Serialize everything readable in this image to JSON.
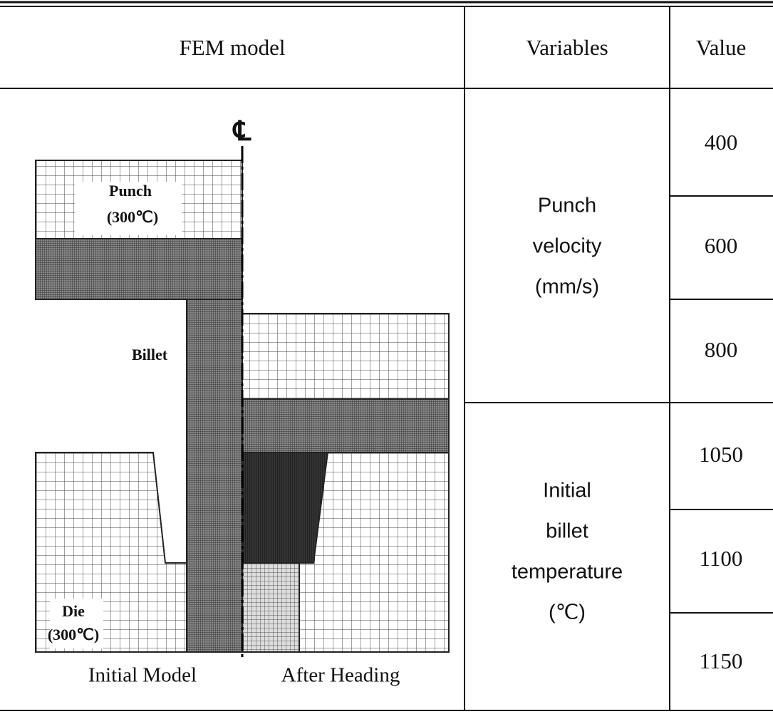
{
  "header": {
    "columns": [
      "FEM model",
      "Variables",
      "Value"
    ]
  },
  "figure": {
    "centerline": "℄",
    "punch": "Punch",
    "punch_temp": "(300℃)",
    "billet": "Billet",
    "die": "Die",
    "die_temp": "(300℃)",
    "captions": [
      "Initial Model",
      "After Heading"
    ]
  },
  "rows": [
    {
      "variable": [
        "Punch",
        "velocity",
        "(mm/s)"
      ],
      "values": [
        400,
        600,
        800
      ]
    },
    {
      "variable": [
        "Initial",
        "billet",
        "temperature",
        "(℃)"
      ],
      "values": [
        1050,
        1100,
        1150
      ]
    }
  ]
}
